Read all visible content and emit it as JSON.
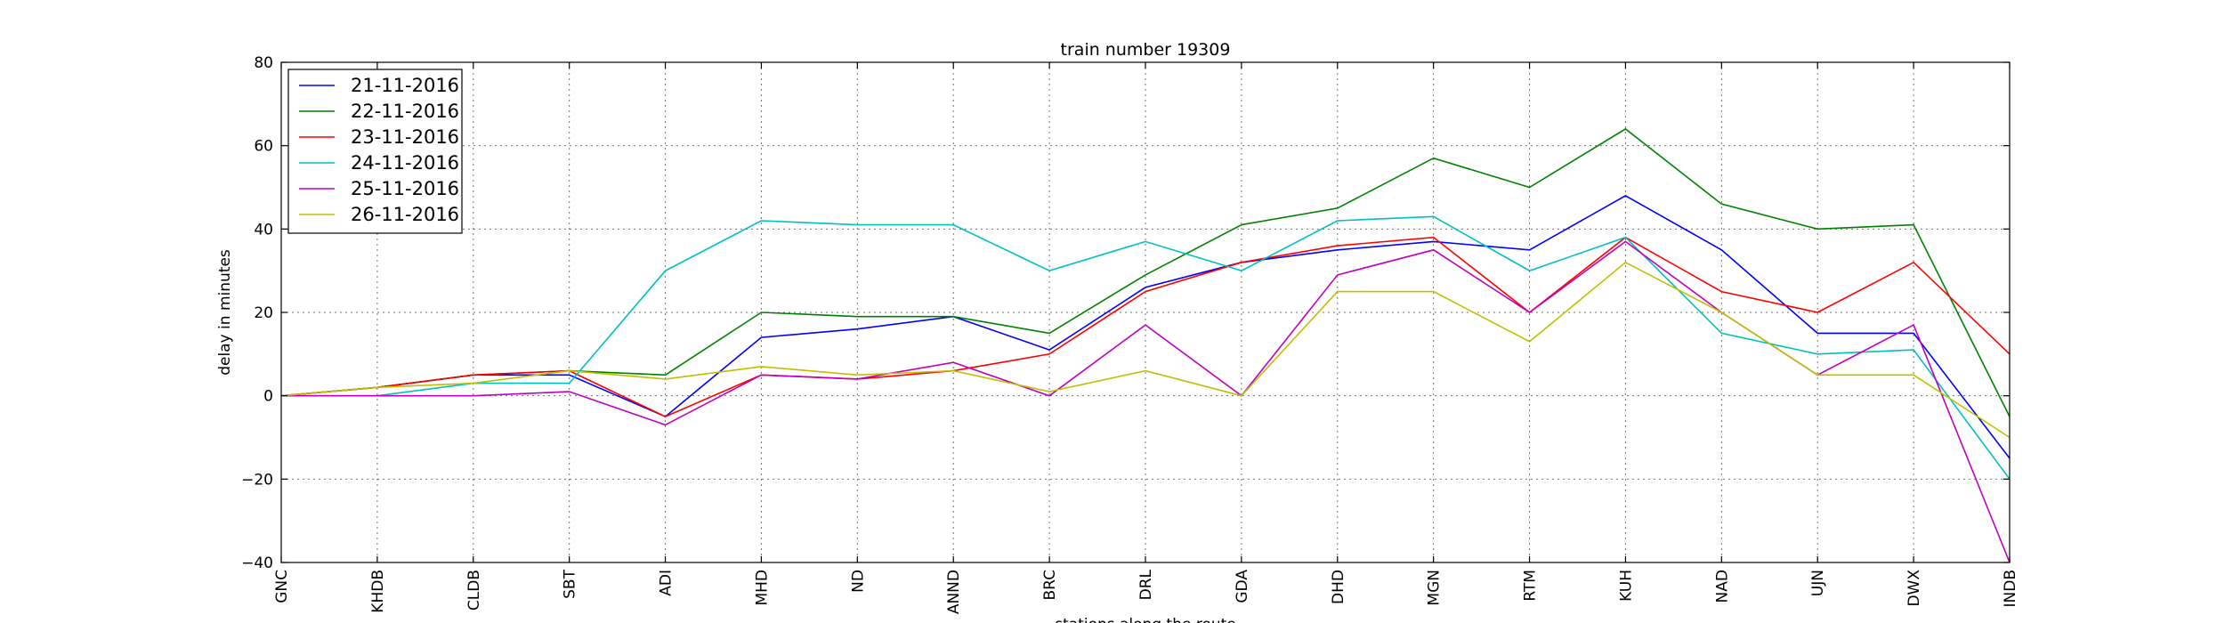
{
  "chart_data": {
    "type": "line",
    "title": "train number 19309",
    "xlabel": "stations along the route",
    "ylabel": "delay in minutes",
    "categories": [
      "GNC",
      "KHDB",
      "CLDB",
      "SBT",
      "ADI",
      "MHD",
      "ND",
      "ANND",
      "BRC",
      "DRL",
      "GDA",
      "DHD",
      "MGN",
      "RTM",
      "KUH",
      "NAD",
      "UJN",
      "DWX",
      "INDB"
    ],
    "ylim": [
      -40,
      80
    ],
    "yticks": [
      -40,
      -20,
      0,
      20,
      40,
      60,
      80
    ],
    "ytick_labels": [
      "−40",
      "−20",
      "0",
      "20",
      "40",
      "60",
      "80"
    ],
    "grid": true,
    "legend_position": "top-left",
    "series": [
      {
        "name": "21-11-2016",
        "color": "#0000ff",
        "values": [
          0,
          2,
          5,
          5,
          -5,
          14,
          16,
          19,
          11,
          26,
          32,
          35,
          37,
          35,
          48,
          35,
          15,
          15,
          -15
        ]
      },
      {
        "name": "22-11-2016",
        "color": "#008000",
        "values": [
          0,
          2,
          5,
          6,
          5,
          20,
          19,
          19,
          15,
          29,
          41,
          45,
          57,
          50,
          64,
          46,
          40,
          41,
          -5
        ]
      },
      {
        "name": "23-11-2016",
        "color": "#ff0000",
        "values": [
          0,
          2,
          5,
          6,
          -5,
          5,
          4,
          6,
          10,
          25,
          32,
          36,
          38,
          20,
          38,
          25,
          20,
          32,
          10
        ]
      },
      {
        "name": "24-11-2016",
        "color": "#00bfbf",
        "values": [
          0,
          0,
          3,
          3,
          30,
          42,
          41,
          41,
          30,
          37,
          30,
          42,
          43,
          30,
          38,
          15,
          10,
          11,
          -20
        ]
      },
      {
        "name": "25-11-2016",
        "color": "#bf00bf",
        "values": [
          0,
          0,
          0,
          1,
          -7,
          5,
          4,
          8,
          0,
          17,
          0,
          29,
          35,
          20,
          37,
          20,
          5,
          17,
          -40
        ]
      },
      {
        "name": "26-11-2016",
        "color": "#bfbf00",
        "values": [
          0,
          2,
          3,
          6,
          4,
          7,
          5,
          6,
          1,
          6,
          0,
          25,
          25,
          13,
          32,
          20,
          5,
          5,
          -10
        ]
      }
    ]
  }
}
